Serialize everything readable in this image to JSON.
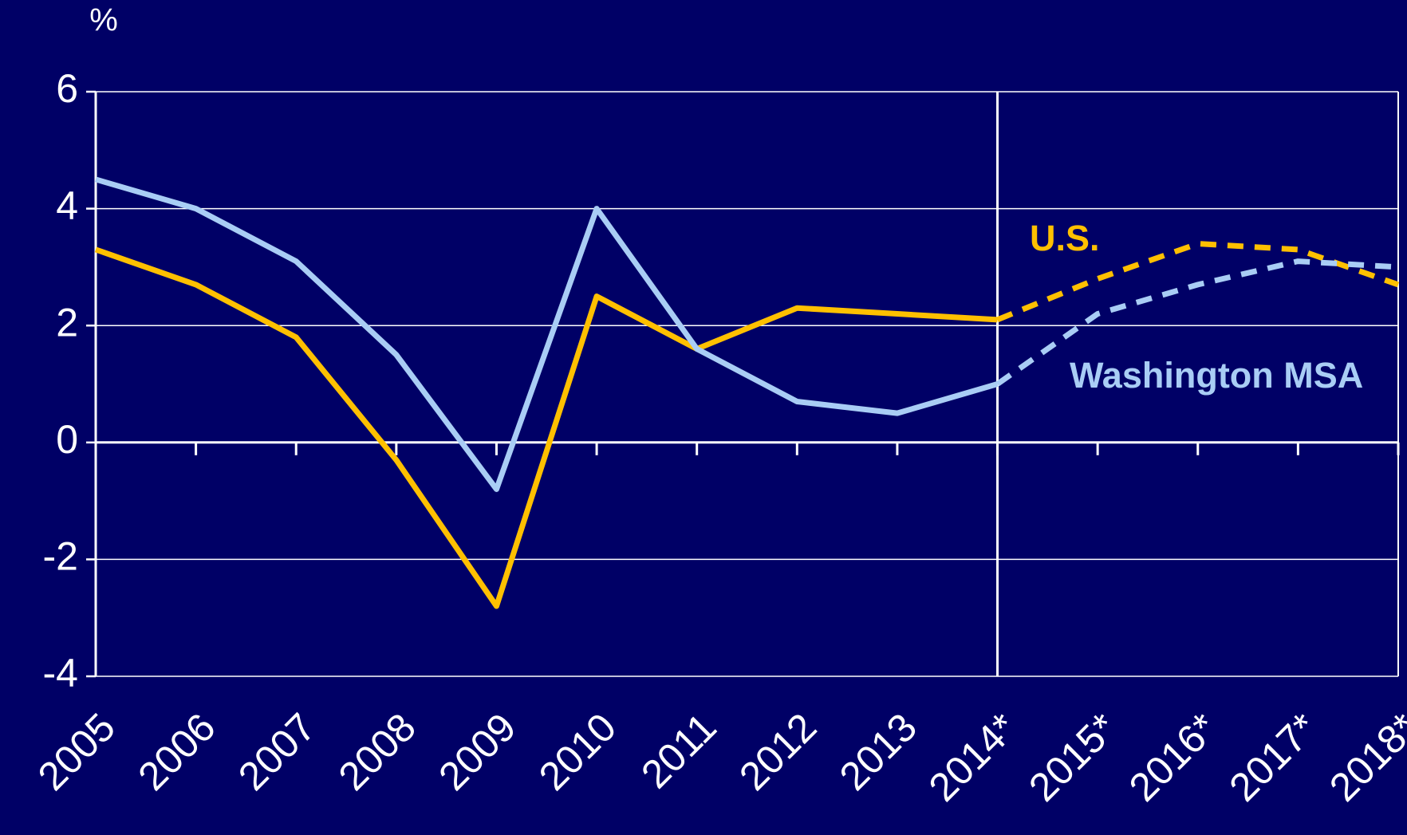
{
  "chart_data": {
    "type": "line",
    "y_unit_label": "%",
    "categories": [
      "2005",
      "2006",
      "2007",
      "2008",
      "2009",
      "2010",
      "2011",
      "2012",
      "2013",
      "2014*",
      "2015*",
      "2016*",
      "2017*",
      "2018*"
    ],
    "series": [
      {
        "name": "U.S.",
        "color": "#ffc000",
        "values": [
          3.3,
          2.7,
          1.8,
          -0.3,
          -2.8,
          2.5,
          1.6,
          2.3,
          2.2,
          2.1,
          2.8,
          3.4,
          3.3,
          2.7
        ]
      },
      {
        "name": "Washington MSA",
        "color": "#a9cdf5",
        "values": [
          4.5,
          4.0,
          3.1,
          1.5,
          -0.8,
          4.0,
          1.6,
          0.7,
          0.5,
          1.0,
          2.2,
          2.7,
          3.1,
          3.0
        ]
      }
    ],
    "dashed_from": "2014*",
    "ylim": [
      -4,
      6
    ],
    "yticks": [
      -4,
      -2,
      0,
      2,
      4,
      6
    ],
    "grid": true
  }
}
